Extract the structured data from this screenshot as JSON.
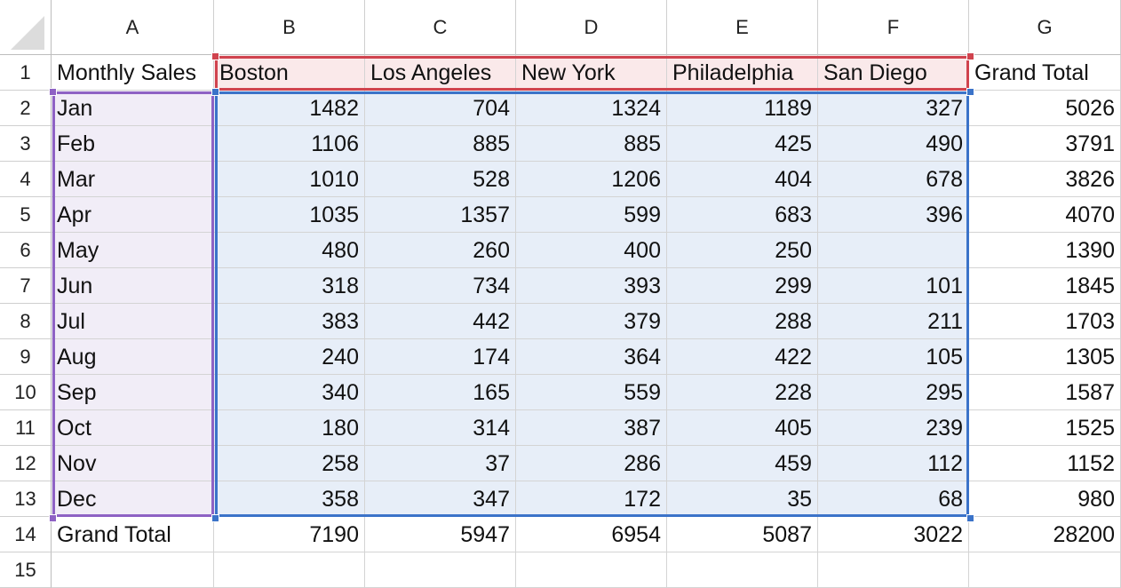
{
  "spreadsheet": {
    "columns": [
      "A",
      "B",
      "C",
      "D",
      "E",
      "F",
      "G"
    ],
    "rows": [
      [
        "Monthly Sales",
        "Boston",
        "Los Angeles",
        "New York",
        "Philadelphia",
        "San Diego",
        "Grand Total"
      ],
      [
        "Jan",
        "1482",
        "704",
        "1324",
        "1189",
        "327",
        "5026"
      ],
      [
        "Feb",
        "1106",
        "885",
        "885",
        "425",
        "490",
        "3791"
      ],
      [
        "Mar",
        "1010",
        "528",
        "1206",
        "404",
        "678",
        "3826"
      ],
      [
        "Apr",
        "1035",
        "1357",
        "599",
        "683",
        "396",
        "4070"
      ],
      [
        "May",
        "480",
        "260",
        "400",
        "250",
        "",
        "1390"
      ],
      [
        "Jun",
        "318",
        "734",
        "393",
        "299",
        "101",
        "1845"
      ],
      [
        "Jul",
        "383",
        "442",
        "379",
        "288",
        "211",
        "1703"
      ],
      [
        "Aug",
        "240",
        "174",
        "364",
        "422",
        "105",
        "1305"
      ],
      [
        "Sep",
        "340",
        "165",
        "559",
        "228",
        "295",
        "1587"
      ],
      [
        "Oct",
        "180",
        "314",
        "387",
        "405",
        "239",
        "1525"
      ],
      [
        "Nov",
        "258",
        "37",
        "286",
        "459",
        "112",
        "1152"
      ],
      [
        "Dec",
        "358",
        "347",
        "172",
        "35",
        "68",
        "980"
      ],
      [
        "Grand Total",
        "7190",
        "5947",
        "6954",
        "5087",
        "3022",
        "28200"
      ],
      [
        "",
        "",
        "",
        "",
        "",
        "",
        ""
      ]
    ]
  },
  "highlight_colors": {
    "purple": "#8e62c4",
    "red": "#d0434e",
    "blue": "#3b73c9"
  }
}
